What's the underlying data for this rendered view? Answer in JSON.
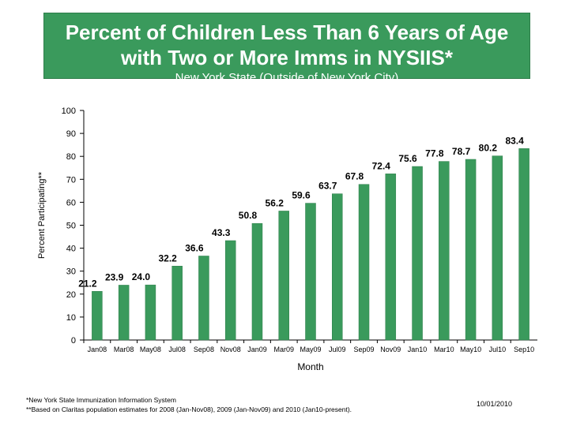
{
  "header": {
    "title_line1": "Percent of Children Less Than 6 Years of Age",
    "title_line2": "with Two or More Imms in NYSIIS*",
    "subtitle": "New York State (Outside of New York City)"
  },
  "chart_data": {
    "type": "bar",
    "categories": [
      "Jan08",
      "Mar08",
      "May08",
      "Jul08",
      "Sep08",
      "Nov08",
      "Jan09",
      "Mar09",
      "May09",
      "Jul09",
      "Sep09",
      "Nov09",
      "Jan10",
      "Mar10",
      "May10",
      "Jul10",
      "Sep10"
    ],
    "values": [
      21.2,
      23.9,
      24.0,
      32.2,
      36.6,
      43.3,
      50.8,
      56.2,
      59.6,
      63.7,
      67.8,
      72.4,
      75.6,
      77.8,
      78.7,
      80.2,
      83.4
    ],
    "value_labels": [
      "21.2",
      "23.9",
      "24.0",
      "32.2",
      "36.6",
      "43.3",
      "50.8",
      "56.2",
      "59.6",
      "63.7",
      "67.8",
      "72.4",
      "75.6",
      "77.8",
      "78.7",
      "80.2",
      "83.4"
    ],
    "xlabel": "Month",
    "ylabel": "Percent Participating**",
    "ylim": [
      0,
      100
    ],
    "yticks": [
      "0",
      "10",
      "20",
      "30",
      "40",
      "50",
      "60",
      "70",
      "80",
      "90",
      "100"
    ],
    "bar_color": "#3a9a5c",
    "grid": false,
    "legend": "none"
  },
  "footnotes": {
    "line1": "*New York State Immunization Information System",
    "line2": "**Based on Claritas population estimates for 2008 (Jan-Nov08), 2009 (Jan-Nov09) and 2010 (Jan10-present).",
    "date": "10/01/2010"
  },
  "colors": {
    "accent": "#3a9a5c"
  }
}
